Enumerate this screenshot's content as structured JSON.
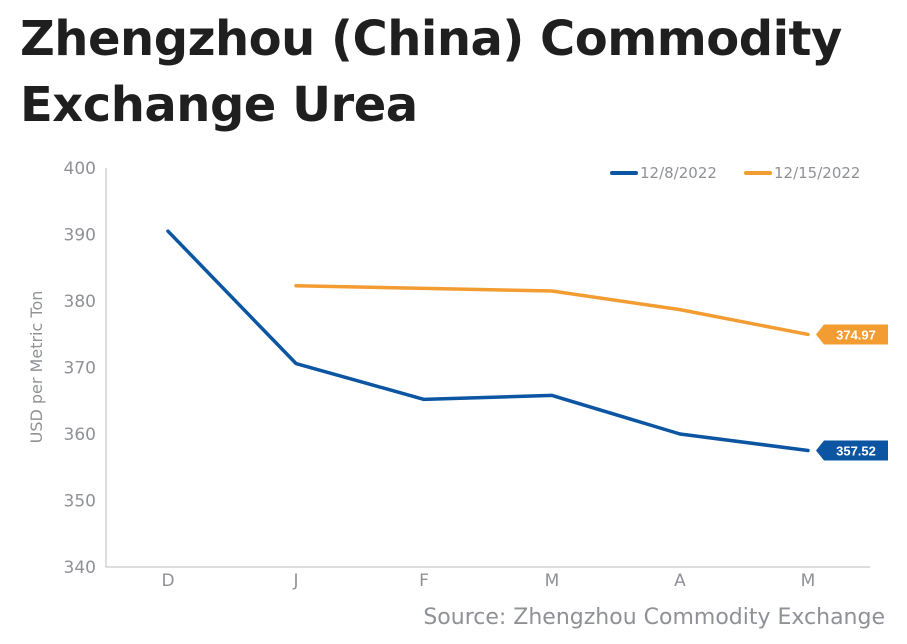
{
  "chart_data": {
    "type": "line",
    "title": "Zhengzhou (China) Commodity Exchange Urea",
    "ylabel": "USD per Metric Ton",
    "xlabel": "",
    "categories": [
      "D",
      "J",
      "F",
      "M",
      "A",
      "M"
    ],
    "ylim": [
      340,
      400
    ],
    "yticks": [
      340,
      350,
      360,
      370,
      380,
      390,
      400
    ],
    "grid": false,
    "legend_position": "top-right",
    "series": [
      {
        "name": "12/8/2022",
        "color": "#0b55a2",
        "values": [
          390.5,
          370.6,
          365.2,
          365.8,
          360.0,
          357.52
        ],
        "end_label": "357.52"
      },
      {
        "name": "12/15/2022",
        "color": "#f39c32",
        "values": [
          null,
          382.3,
          381.9,
          381.5,
          378.7,
          374.97
        ],
        "end_label": "374.97"
      }
    ],
    "source": "Source: Zhengzhou Commodity Exchange"
  }
}
